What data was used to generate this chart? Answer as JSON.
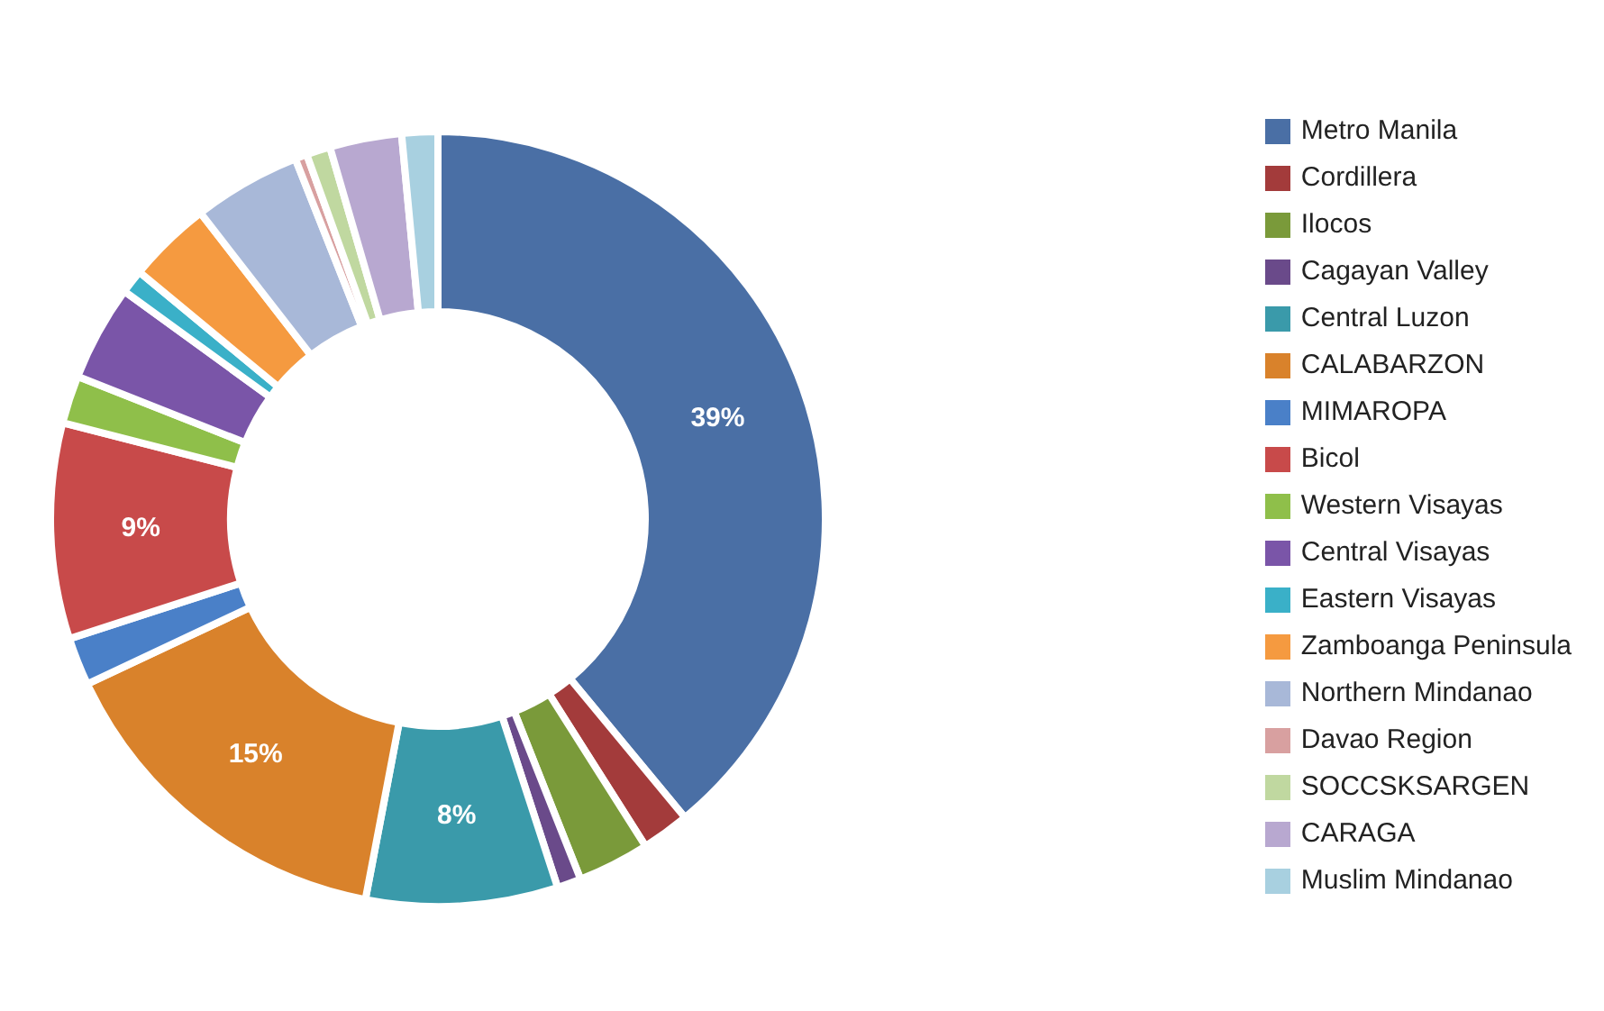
{
  "chart_data": {
    "type": "donut",
    "categories": [
      "Metro Manila",
      "Cordillera",
      "Ilocos",
      "Cagayan Valley",
      "Central Luzon",
      "CALABARZON",
      "MIMAROPA",
      "Bicol",
      "Western Visayas",
      "Central Visayas",
      "Eastern Visayas",
      "Zamboanga Peninsula",
      "Northern Mindanao",
      "Davao Region",
      "SOCCSKSARGEN",
      "CARAGA",
      "Muslim Mindanao"
    ],
    "values": [
      39,
      2,
      3,
      1,
      8,
      15,
      2,
      9,
      2,
      4,
      1,
      3.5,
      4.5,
      0.5,
      1,
      3,
      1.5
    ],
    "value_labels": [
      "39%",
      null,
      null,
      null,
      "8%",
      "15%",
      null,
      "9%",
      null,
      null,
      null,
      null,
      null,
      null,
      null,
      null,
      null
    ],
    "colors": [
      "#4a6fa5",
      "#a33b3b",
      "#7a9a3a",
      "#6a4a8a",
      "#3a9aaa",
      "#d9822b",
      "#4a80c8",
      "#c84a4a",
      "#8fbf4a",
      "#7a55a8",
      "#3ab0c8",
      "#f59a40",
      "#a8b8d8",
      "#d8a0a0",
      "#c0d8a0",
      "#b8a8d0",
      "#a8d0e0"
    ],
    "legend": "right"
  }
}
